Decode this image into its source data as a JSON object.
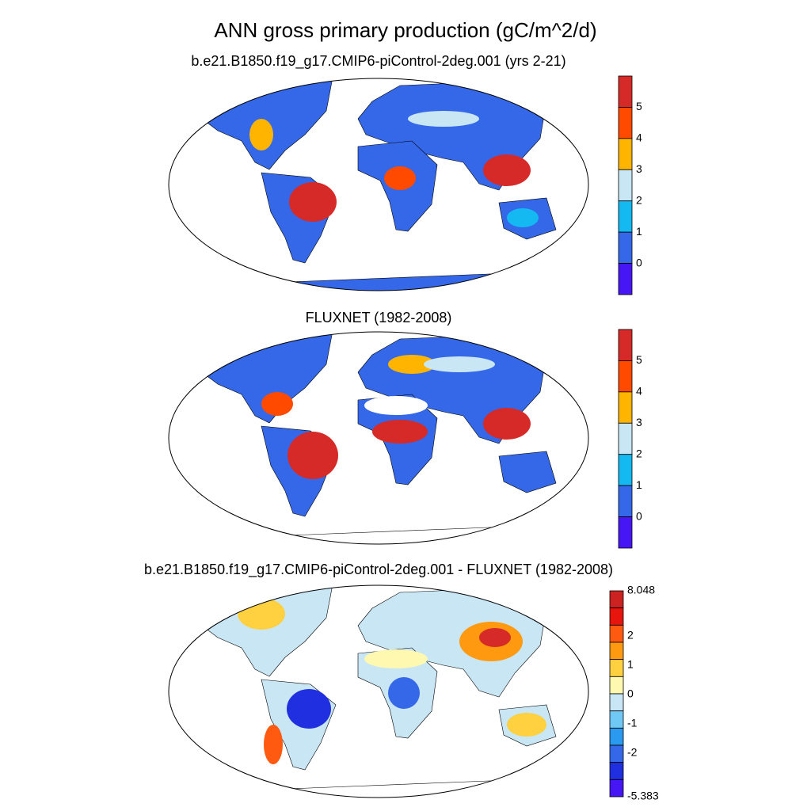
{
  "title": "ANN gross primary production (gC/m^2/d)",
  "panels": [
    {
      "title": "b.e21.B1850.f19_g17.CMIP6-piControl-2deg.001 (yrs 2-21)",
      "colorbar": {
        "labels": [
          5,
          4,
          3,
          2,
          1,
          0
        ],
        "colors": [
          "#d62a28",
          "#ff4a00",
          "#ffb400",
          "#c9e6f5",
          "#14b9f2",
          "#3468e8",
          "#4716f5"
        ]
      }
    },
    {
      "title": "FLUXNET (1982-2008)",
      "colorbar": {
        "labels": [
          5,
          4,
          3,
          2,
          1,
          0
        ],
        "colors": [
          "#d62a28",
          "#ff4a00",
          "#ffb400",
          "#c9e6f5",
          "#14b9f2",
          "#3468e8",
          "#4716f5"
        ]
      }
    },
    {
      "title": "b.e21.B1850.f19_g17.CMIP6-piControl-2deg.001 - FLUXNET (1982-2008)",
      "colorbar": {
        "labels": [
          8.048,
          2,
          1,
          0,
          -1,
          -2,
          -5.383
        ],
        "colors": [
          "#cc2222",
          "#e8140e",
          "#ff5a10",
          "#ff9a10",
          "#ffd040",
          "#fff8b0",
          "#c8e6f5",
          "#70c8f5",
          "#2a9af0",
          "#3468e8",
          "#2030e0",
          "#4716f5"
        ]
      }
    }
  ]
}
